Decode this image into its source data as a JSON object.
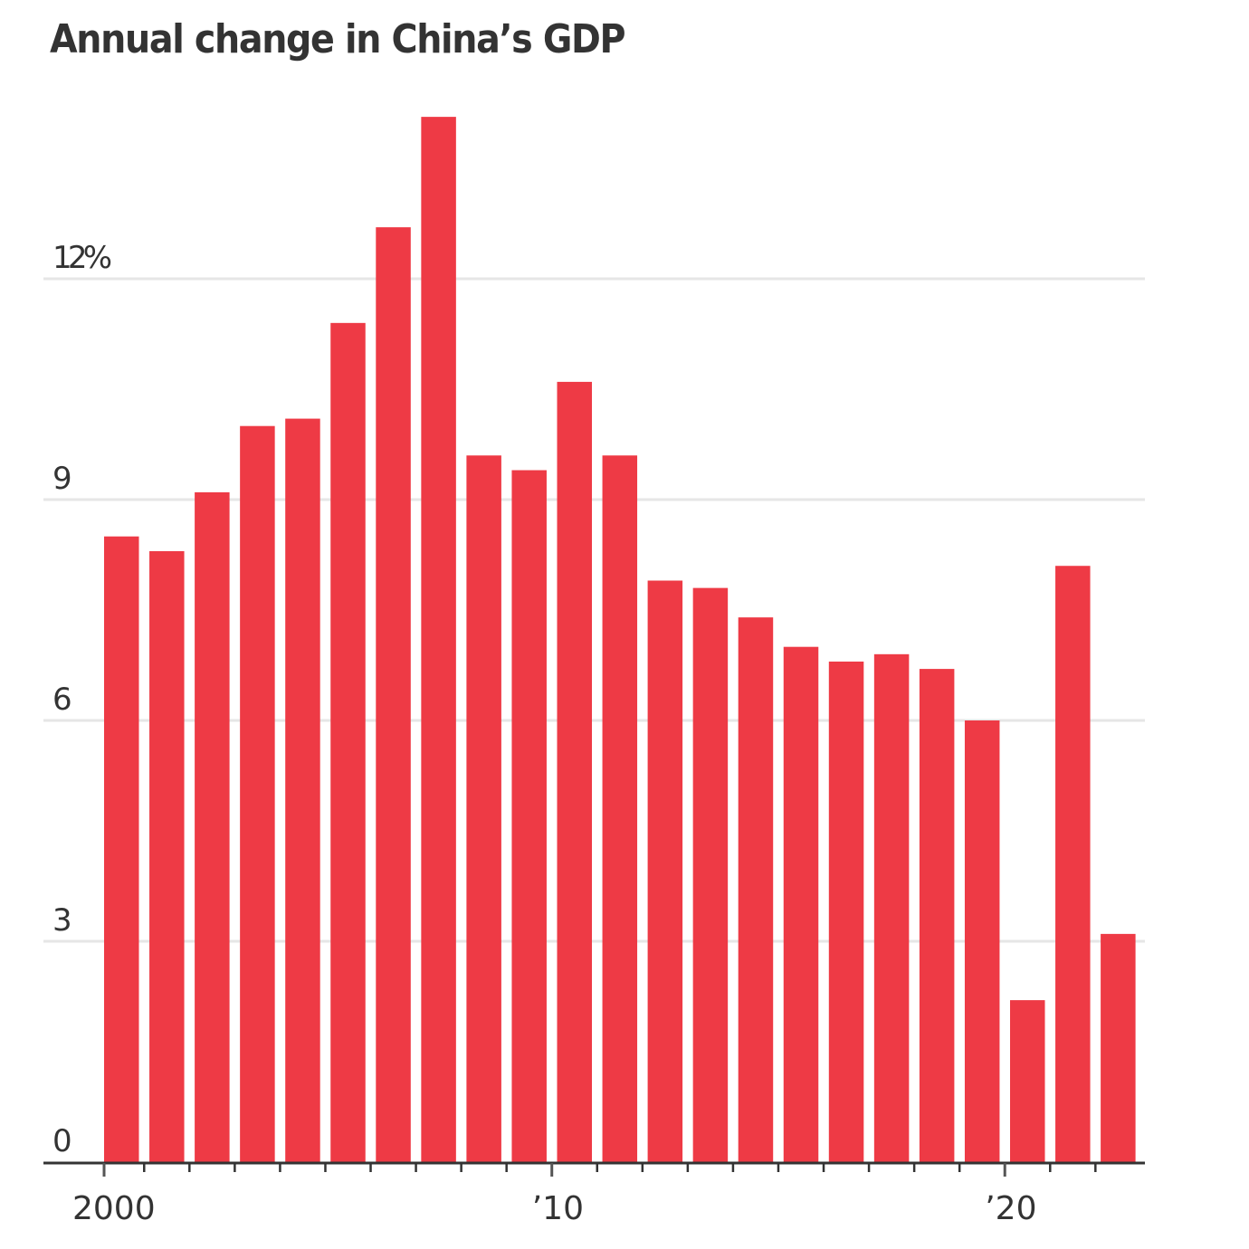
{
  "chart_data": {
    "type": "bar",
    "title": "Annual change in China’s GDP",
    "xlabel": "",
    "ylabel": "",
    "categories": [
      "2000",
      "2001",
      "2002",
      "2003",
      "2004",
      "2005",
      "2006",
      "2007",
      "2008",
      "2009",
      "2010",
      "2011",
      "2012",
      "2013",
      "2014",
      "2015",
      "2016",
      "2017",
      "2018",
      "2019",
      "2020",
      "2021",
      "2022"
    ],
    "values": [
      8.5,
      8.3,
      9.1,
      10.0,
      10.1,
      11.4,
      12.7,
      14.2,
      9.6,
      9.4,
      10.6,
      9.6,
      7.9,
      7.8,
      7.4,
      7.0,
      6.8,
      6.9,
      6.7,
      6.0,
      2.2,
      8.1,
      3.1
    ],
    "ylim": [
      0,
      15
    ],
    "y_ticks": [
      {
        "value": 0,
        "label": "0"
      },
      {
        "value": 3,
        "label": "3"
      },
      {
        "value": 6,
        "label": "6"
      },
      {
        "value": 9,
        "label": "9"
      },
      {
        "value": 12,
        "label": "12%"
      }
    ],
    "x_labels": [
      {
        "year": "2000",
        "label": "2000"
      },
      {
        "year": "2010",
        "label": "’10"
      },
      {
        "year": "2020",
        "label": "’20"
      }
    ],
    "grid": true,
    "legend": "none",
    "colors": {
      "bar": "#EE3A45",
      "grid": "#E6E6E6",
      "axis": "#333333",
      "text": "#333333"
    }
  }
}
